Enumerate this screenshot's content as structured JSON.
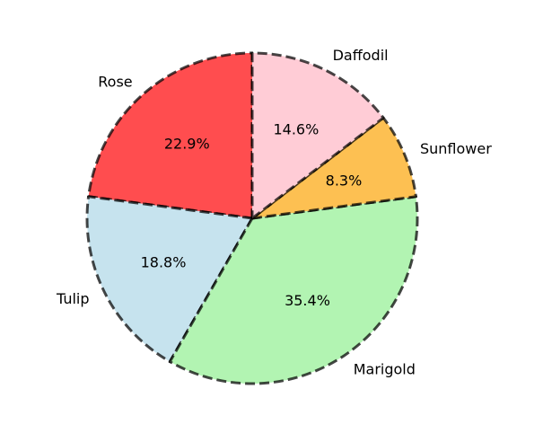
{
  "chart_data": {
    "type": "pie",
    "title": "",
    "start_angle_deg": 90,
    "direction": "counterclockwise",
    "edge_style": "dashed",
    "slices": [
      {
        "label": "Rose",
        "value": 22.9,
        "pct_label": "22.9%",
        "color": "#ff4d4f"
      },
      {
        "label": "Tulip",
        "value": 18.8,
        "pct_label": "18.8%",
        "color": "#c6e3ee"
      },
      {
        "label": "Marigold",
        "value": 35.4,
        "pct_label": "35.4%",
        "color": "#b2f4b2"
      },
      {
        "label": "Sunflower",
        "value": 8.3,
        "pct_label": "8.3%",
        "color": "#fdc052"
      },
      {
        "label": "Daffodil",
        "value": 14.6,
        "pct_label": "14.6%",
        "color": "#ffccd6"
      }
    ]
  }
}
